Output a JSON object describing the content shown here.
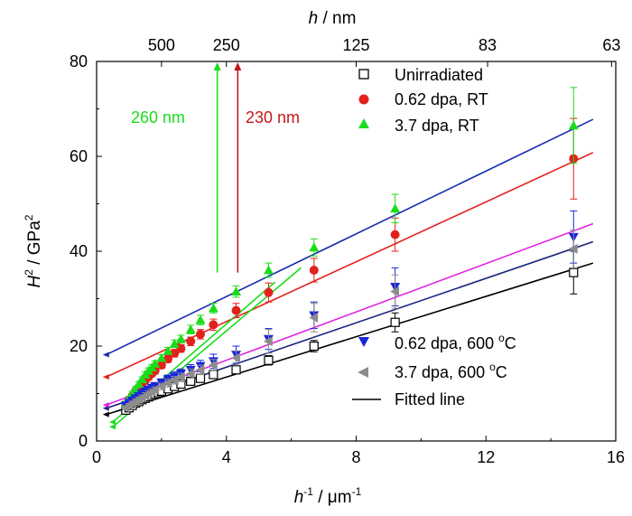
{
  "chart_data": {
    "type": "scatter",
    "xlabel_main": "h",
    "xlabel_sup": "-1",
    "xlabel_unit": " / μm",
    "xlabel_unit_sup": "-1",
    "ylabel_main": "H",
    "ylabel_sup": "2",
    "ylabel_unit": " / GPa",
    "ylabel_unit_sup": "2",
    "top_xlabel_main": "h",
    "top_xlabel_unit": " / nm",
    "xlim": [
      0,
      16
    ],
    "ylim": [
      0,
      80
    ],
    "x_ticks": [
      0,
      4,
      8,
      12,
      16
    ],
    "y_ticks": [
      0,
      20,
      40,
      60,
      80
    ],
    "top_ticks": [
      {
        "label": "500",
        "x": 2.0
      },
      {
        "label": "250",
        "x": 4.0
      },
      {
        "label": "125",
        "x": 8.0
      },
      {
        "label": "83",
        "x": 12.05
      },
      {
        "label": "63",
        "x": 15.87
      }
    ],
    "series": [
      {
        "name": "Unirradiated",
        "marker": "square-open",
        "color": "#000000",
        "x": [
          0.9,
          1.0,
          1.1,
          1.2,
          1.3,
          1.4,
          1.5,
          1.6,
          1.7,
          1.8,
          1.9,
          2.0,
          2.2,
          2.4,
          2.6,
          2.9,
          3.2,
          3.6,
          4.3,
          5.3,
          6.7,
          9.2,
          14.7
        ],
        "y": [
          6.5,
          7.0,
          7.5,
          8.0,
          8.3,
          8.7,
          9.0,
          9.3,
          9.6,
          9.9,
          10.2,
          10.5,
          11.0,
          11.5,
          12.0,
          12.6,
          13.2,
          14.0,
          15.0,
          17.0,
          20.0,
          25.0,
          35.5
        ],
        "err": [
          0.3,
          0.3,
          0.3,
          0.3,
          0.3,
          0.3,
          0.4,
          0.4,
          0.4,
          0.4,
          0.4,
          0.5,
          0.5,
          0.5,
          0.5,
          0.6,
          0.6,
          0.7,
          0.8,
          1.0,
          1.2,
          2.0,
          4.5
        ]
      },
      {
        "name": "0.62 dpa, RT",
        "marker": "circle",
        "color": "#e3211c",
        "x": [
          0.9,
          1.0,
          1.1,
          1.2,
          1.3,
          1.4,
          1.5,
          1.6,
          1.7,
          1.8,
          2.0,
          2.2,
          2.4,
          2.6,
          2.9,
          3.2,
          3.6,
          4.3,
          5.3,
          6.7,
          9.2,
          14.7
        ],
        "y": [
          7.5,
          8.5,
          9.5,
          10.5,
          11.3,
          12.0,
          12.8,
          13.5,
          14.2,
          14.8,
          16.0,
          17.3,
          18.5,
          19.5,
          21.0,
          22.5,
          24.5,
          27.5,
          31.3,
          36.0,
          43.5,
          59.5
        ],
        "err": [
          0.4,
          0.4,
          0.5,
          0.5,
          0.5,
          0.5,
          0.6,
          0.6,
          0.6,
          0.6,
          0.7,
          0.7,
          0.8,
          0.8,
          0.9,
          1.0,
          1.2,
          1.5,
          2.0,
          2.5,
          3.5,
          8.5
        ]
      },
      {
        "name": "3.7 dpa, RT",
        "marker": "triangle-up",
        "color": "#1bdc1b",
        "x": [
          0.9,
          1.0,
          1.1,
          1.2,
          1.3,
          1.4,
          1.5,
          1.6,
          1.7,
          1.8,
          2.0,
          2.2,
          2.4,
          2.6,
          2.9,
          3.2,
          3.6,
          4.3,
          5.3,
          6.7,
          9.2,
          14.7
        ],
        "y": [
          8.0,
          9.0,
          10.0,
          11.0,
          12.0,
          13.0,
          14.0,
          14.8,
          15.5,
          16.3,
          17.5,
          19.0,
          20.5,
          21.5,
          23.5,
          25.5,
          28.0,
          31.5,
          36.0,
          40.8,
          49.0,
          66.5
        ],
        "err": [
          0.4,
          0.4,
          0.5,
          0.5,
          0.5,
          0.5,
          0.6,
          0.6,
          0.6,
          0.6,
          0.7,
          0.7,
          0.8,
          0.8,
          0.9,
          1.0,
          1.0,
          1.2,
          1.5,
          1.8,
          3.0,
          8.0
        ]
      },
      {
        "name": "0.62 dpa, 600 °C",
        "marker": "triangle-down",
        "color": "#1a25d8",
        "x": [
          0.9,
          1.0,
          1.1,
          1.2,
          1.3,
          1.4,
          1.5,
          1.6,
          1.7,
          1.8,
          2.0,
          2.2,
          2.4,
          2.6,
          2.9,
          3.2,
          3.6,
          4.3,
          5.3,
          6.7,
          9.2,
          14.7
        ],
        "y": [
          7.5,
          8.0,
          8.5,
          9.0,
          9.5,
          10.0,
          10.4,
          10.8,
          11.2,
          11.6,
          12.3,
          13.0,
          13.6,
          14.2,
          15.0,
          15.8,
          16.8,
          18.2,
          21.5,
          26.5,
          32.5,
          43.0
        ],
        "err": [
          0.4,
          0.4,
          0.5,
          0.5,
          0.5,
          0.6,
          0.6,
          0.6,
          0.7,
          0.7,
          0.8,
          0.9,
          1.0,
          1.0,
          1.1,
          1.2,
          1.5,
          1.8,
          2.2,
          2.8,
          4.0,
          5.5
        ]
      },
      {
        "name": "3.7 dpa, 600 °C",
        "marker": "triangle-left",
        "color": "#8c8c8c",
        "x": [
          0.9,
          1.0,
          1.1,
          1.2,
          1.3,
          1.4,
          1.5,
          1.6,
          1.7,
          1.8,
          2.0,
          2.2,
          2.4,
          2.6,
          2.9,
          3.2,
          3.6,
          4.3,
          5.3,
          6.7,
          9.2,
          14.7
        ],
        "y": [
          7.0,
          7.5,
          8.0,
          8.4,
          8.8,
          9.2,
          9.6,
          10.0,
          10.4,
          10.8,
          11.5,
          12.2,
          12.8,
          13.4,
          14.2,
          15.0,
          16.0,
          17.5,
          21.0,
          26.0,
          31.5,
          40.5
        ],
        "err": [
          0.4,
          0.4,
          0.4,
          0.5,
          0.5,
          0.5,
          0.6,
          0.6,
          0.6,
          0.6,
          0.7,
          0.8,
          0.8,
          0.9,
          1.0,
          1.0,
          1.2,
          1.5,
          2.5,
          3.0,
          3.5,
          4.0
        ]
      }
    ],
    "fit_lines": [
      {
        "color": "#000000",
        "x": [
          0.3,
          15.3
        ],
        "y": [
          5.6,
          37.5
        ]
      },
      {
        "color": "#1a237e",
        "x": [
          0.3,
          15.3
        ],
        "y": [
          6.9,
          42.0
        ]
      },
      {
        "color": "#e020e0",
        "x": [
          0.3,
          15.3
        ],
        "y": [
          7.6,
          45.8
        ]
      },
      {
        "color": "#e3211c",
        "x": [
          0.3,
          15.3
        ],
        "y": [
          13.5,
          60.8
        ]
      },
      {
        "color": "#1a2bb0",
        "x": [
          0.3,
          15.3
        ],
        "y": [
          18.2,
          67.8
        ]
      },
      {
        "color": "#1bdc1b",
        "x": [
          0.5,
          6.3
        ],
        "y": [
          3.0,
          36.5
        ]
      },
      {
        "color": "#1bdc1b",
        "x": [
          0.5,
          5.5
        ],
        "y": [
          4.0,
          33.5
        ]
      }
    ],
    "annotations": [
      {
        "text": "260 nm",
        "color": "#1bdc1b",
        "arrow_x": 3.72,
        "arrow_y0": 35.5,
        "arrow_y1": 80
      },
      {
        "text": "230 nm",
        "color": "#c01818",
        "arrow_x": 4.35,
        "arrow_y0": 35.5,
        "arrow_y1": 80
      }
    ],
    "legend_top": [
      "Unirradiated",
      "0.62 dpa, RT",
      "3.7 dpa, RT"
    ],
    "legend_bottom": [
      "0.62 dpa, 600 °C",
      "3.7 dpa, 600 °C",
      "Fitted line"
    ],
    "legend_bottom_parts": [
      {
        "pre": "0.62 dpa, 600 ",
        "sup": "o",
        "post": "C"
      },
      {
        "pre": "3.7 dpa, 600 ",
        "sup": "o",
        "post": "C"
      },
      {
        "pre": "Fitted line",
        "sup": "",
        "post": ""
      }
    ]
  }
}
